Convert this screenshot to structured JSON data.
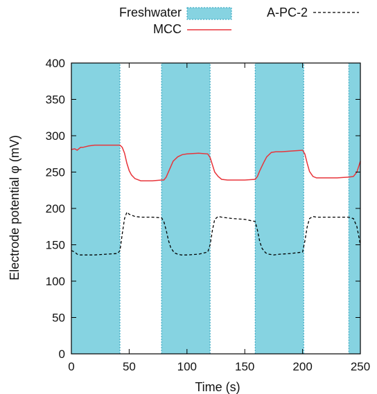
{
  "chart_data": {
    "type": "line",
    "xlabel": "Time (s)",
    "ylabel": "Electrode potential φ (mV)",
    "xlim": [
      0,
      250
    ],
    "ylim": [
      0,
      400
    ],
    "xticks": [
      "0",
      "50",
      "100",
      "150",
      "200",
      "250"
    ],
    "yticks": [
      "0",
      "50",
      "100",
      "150",
      "200",
      "250",
      "300",
      "350",
      "400"
    ],
    "grid": false,
    "legend_position": "top",
    "colors": {
      "freshwater": "#86d3e1",
      "mcc": "#e8343a",
      "apc2": "#000000"
    },
    "freshwater_intervals": [
      [
        0,
        42
      ],
      [
        78,
        120
      ],
      [
        159,
        201
      ],
      [
        240,
        250
      ]
    ],
    "series": [
      {
        "name": "MCC",
        "style": "solid",
        "x": [
          0,
          3,
          5,
          8,
          10,
          15,
          20,
          30,
          38,
          42,
          44,
          46,
          48,
          50,
          52,
          55,
          60,
          70,
          78,
          80,
          82,
          85,
          88,
          92,
          96,
          100,
          110,
          118,
          120,
          122,
          124,
          127,
          130,
          135,
          140,
          150,
          159,
          161,
          163,
          166,
          169,
          173,
          177,
          182,
          190,
          200,
          202,
          204,
          206,
          209,
          212,
          220,
          230,
          240,
          244,
          247,
          250
        ],
        "values": [
          281,
          282,
          280,
          284,
          284,
          286,
          287,
          287,
          287,
          287,
          284,
          276,
          262,
          252,
          246,
          241,
          238,
          238,
          239,
          239,
          243,
          254,
          265,
          271,
          274,
          275,
          276,
          275,
          270,
          260,
          250,
          244,
          240,
          239,
          239,
          239,
          240,
          244,
          252,
          262,
          271,
          277,
          278,
          278,
          279,
          280,
          275,
          262,
          251,
          244,
          242,
          242,
          242,
          243,
          244,
          250,
          265
        ]
      },
      {
        "name": "A-PC-2",
        "style": "dashed",
        "x": [
          0,
          3,
          5,
          7,
          10,
          20,
          30,
          40,
          42,
          44,
          46,
          48,
          50,
          55,
          60,
          70,
          78,
          80,
          82,
          84,
          86,
          89,
          92,
          95,
          100,
          110,
          118,
          120,
          122,
          124,
          127,
          130,
          140,
          150,
          159,
          161,
          163,
          165,
          168,
          171,
          175,
          180,
          190,
          200,
          202,
          204,
          206,
          209,
          212,
          220,
          230,
          240,
          244,
          247,
          250
        ],
        "values": [
          142,
          140,
          137,
          136,
          136,
          136,
          137,
          138,
          142,
          165,
          186,
          195,
          192,
          189,
          188,
          188,
          187,
          182,
          170,
          156,
          146,
          139,
          137,
          136,
          136,
          137,
          140,
          150,
          170,
          185,
          189,
          188,
          186,
          185,
          182,
          170,
          154,
          145,
          139,
          137,
          136,
          137,
          138,
          140,
          155,
          175,
          186,
          189,
          188,
          188,
          188,
          188,
          186,
          175,
          150
        ]
      }
    ],
    "legend": [
      {
        "label": "Freshwater",
        "kind": "fill"
      },
      {
        "label": "MCC",
        "kind": "line"
      },
      {
        "label": "A-PC-2",
        "kind": "dashed"
      }
    ]
  }
}
